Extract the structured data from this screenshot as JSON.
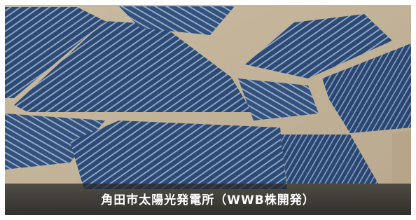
{
  "caption": "角田市太陽光発電所（WWB株開発）"
}
